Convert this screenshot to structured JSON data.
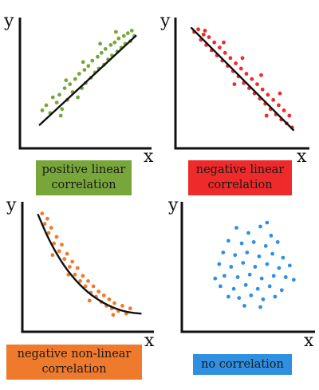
{
  "colors": {
    "positive": "#79a63b",
    "negative": "#ee2a2a",
    "nonlinear": "#f07a2c",
    "none": "#2f8fe0",
    "trend": "#111111",
    "axis": "#111111"
  },
  "chart_data": [
    {
      "type": "scatter",
      "title": "positive linear correlation",
      "xlabel": "x",
      "ylabel": "y",
      "xlim": [
        0,
        10
      ],
      "ylim": [
        0,
        10
      ],
      "trend": {
        "kind": "line",
        "points": [
          [
            1.5,
            1.8
          ],
          [
            8.8,
            8.6
          ]
        ]
      },
      "points": [
        [
          1.7,
          2.9
        ],
        [
          2.0,
          3.3
        ],
        [
          2.3,
          2.7
        ],
        [
          2.5,
          3.9
        ],
        [
          2.8,
          3.5
        ],
        [
          3.0,
          4.1
        ],
        [
          3.2,
          3.0
        ],
        [
          3.4,
          4.6
        ],
        [
          3.6,
          3.7
        ],
        [
          3.8,
          4.9
        ],
        [
          4.0,
          4.3
        ],
        [
          4.2,
          5.3
        ],
        [
          4.4,
          3.9
        ],
        [
          4.5,
          5.7
        ],
        [
          4.7,
          4.6
        ],
        [
          4.9,
          6.0
        ],
        [
          5.0,
          5.0
        ],
        [
          5.2,
          6.3
        ],
        [
          5.4,
          5.4
        ],
        [
          5.5,
          6.7
        ],
        [
          5.7,
          5.8
        ],
        [
          5.9,
          7.0
        ],
        [
          6.0,
          6.1
        ],
        [
          6.2,
          7.3
        ],
        [
          6.4,
          6.4
        ],
        [
          6.5,
          7.6
        ],
        [
          6.7,
          6.8
        ],
        [
          6.9,
          7.9
        ],
        [
          7.0,
          7.1
        ],
        [
          7.2,
          8.1
        ],
        [
          7.4,
          7.4
        ],
        [
          7.5,
          8.4
        ],
        [
          7.7,
          7.7
        ],
        [
          7.9,
          8.6
        ],
        [
          8.0,
          8.0
        ],
        [
          8.2,
          8.8
        ],
        [
          8.4,
          8.2
        ],
        [
          8.5,
          9.0
        ],
        [
          8.7,
          8.6
        ],
        [
          3.5,
          5.2
        ],
        [
          4.8,
          6.6
        ],
        [
          6.1,
          8.0
        ],
        [
          7.3,
          8.9
        ],
        [
          3.1,
          2.5
        ]
      ]
    },
    {
      "type": "scatter",
      "title": "negative linear correlation",
      "xlabel": "x",
      "ylabel": "y",
      "xlim": [
        0,
        10
      ],
      "ylim": [
        0,
        10
      ],
      "trend": {
        "kind": "line",
        "points": [
          [
            1.2,
            9.2
          ],
          [
            8.8,
            1.4
          ]
        ]
      },
      "points": [
        [
          1.4,
          8.9
        ],
        [
          1.7,
          9.1
        ],
        [
          1.9,
          8.3
        ],
        [
          2.1,
          8.7
        ],
        [
          2.3,
          7.9
        ],
        [
          2.5,
          8.5
        ],
        [
          2.7,
          7.5
        ],
        [
          2.9,
          8.1
        ],
        [
          3.1,
          7.1
        ],
        [
          3.3,
          7.7
        ],
        [
          3.5,
          6.7
        ],
        [
          3.7,
          7.3
        ],
        [
          3.9,
          6.3
        ],
        [
          4.1,
          6.9
        ],
        [
          4.3,
          5.9
        ],
        [
          4.5,
          6.5
        ],
        [
          4.7,
          5.5
        ],
        [
          4.9,
          6.1
        ],
        [
          5.1,
          5.0
        ],
        [
          5.3,
          5.7
        ],
        [
          5.5,
          4.6
        ],
        [
          5.7,
          5.3
        ],
        [
          5.9,
          4.2
        ],
        [
          6.1,
          4.9
        ],
        [
          6.3,
          3.8
        ],
        [
          6.5,
          4.5
        ],
        [
          6.7,
          3.4
        ],
        [
          6.9,
          4.1
        ],
        [
          7.1,
          3.0
        ],
        [
          7.3,
          3.7
        ],
        [
          7.5,
          2.6
        ],
        [
          7.7,
          3.3
        ],
        [
          7.9,
          2.2
        ],
        [
          8.1,
          2.9
        ],
        [
          8.3,
          1.9
        ],
        [
          8.5,
          2.5
        ],
        [
          8.7,
          1.6
        ],
        [
          2.2,
          9.0
        ],
        [
          3.6,
          8.1
        ],
        [
          5.0,
          6.9
        ],
        [
          6.4,
          5.6
        ],
        [
          7.8,
          4.2
        ],
        [
          4.4,
          4.9
        ],
        [
          6.8,
          2.5
        ]
      ]
    },
    {
      "type": "scatter",
      "title": "negative non-linear correlation",
      "xlabel": "x",
      "ylabel": "y",
      "xlim": [
        0,
        10
      ],
      "ylim": [
        0,
        10
      ],
      "trend": {
        "kind": "curve",
        "points": [
          [
            1.2,
            9.0
          ],
          [
            2.0,
            7.1
          ],
          [
            3.0,
            5.3
          ],
          [
            4.0,
            4.0
          ],
          [
            5.0,
            3.0
          ],
          [
            6.0,
            2.3
          ],
          [
            7.0,
            1.8
          ],
          [
            8.0,
            1.5
          ],
          [
            9.0,
            1.4
          ]
        ]
      },
      "points": [
        [
          1.5,
          9.1
        ],
        [
          1.7,
          8.3
        ],
        [
          1.9,
          8.7
        ],
        [
          2.0,
          7.6
        ],
        [
          2.2,
          8.0
        ],
        [
          2.4,
          6.8
        ],
        [
          2.6,
          7.3
        ],
        [
          2.8,
          6.2
        ],
        [
          3.0,
          6.7
        ],
        [
          3.2,
          5.6
        ],
        [
          3.4,
          6.0
        ],
        [
          3.6,
          5.0
        ],
        [
          3.8,
          5.4
        ],
        [
          4.0,
          4.4
        ],
        [
          4.2,
          4.9
        ],
        [
          4.4,
          3.9
        ],
        [
          4.6,
          4.3
        ],
        [
          4.8,
          3.5
        ],
        [
          5.0,
          3.9
        ],
        [
          5.2,
          3.0
        ],
        [
          5.4,
          3.5
        ],
        [
          5.6,
          2.7
        ],
        [
          5.8,
          3.1
        ],
        [
          6.0,
          2.3
        ],
        [
          6.2,
          2.8
        ],
        [
          6.4,
          2.0
        ],
        [
          6.6,
          2.5
        ],
        [
          6.8,
          1.8
        ],
        [
          7.0,
          2.2
        ],
        [
          7.3,
          1.6
        ],
        [
          7.6,
          2.0
        ],
        [
          7.9,
          1.4
        ],
        [
          8.2,
          1.8
        ],
        [
          2.3,
          5.9
        ],
        [
          3.5,
          4.4
        ],
        [
          5.1,
          2.4
        ],
        [
          6.9,
          1.3
        ]
      ]
    },
    {
      "type": "scatter",
      "title": "no correlation",
      "xlabel": "x",
      "ylabel": "y",
      "xlim": [
        0,
        10
      ],
      "ylim": [
        0,
        10
      ],
      "trend": null,
      "points": [
        [
          4.1,
          8.0
        ],
        [
          5.0,
          7.6
        ],
        [
          5.9,
          8.1
        ],
        [
          6.7,
          7.4
        ],
        [
          3.5,
          7.0
        ],
        [
          4.5,
          6.8
        ],
        [
          5.4,
          6.9
        ],
        [
          6.3,
          6.6
        ],
        [
          7.2,
          6.9
        ],
        [
          3.1,
          6.1
        ],
        [
          4.0,
          5.9
        ],
        [
          4.9,
          6.1
        ],
        [
          5.8,
          5.8
        ],
        [
          6.8,
          6.0
        ],
        [
          7.6,
          5.7
        ],
        [
          2.8,
          5.2
        ],
        [
          3.7,
          5.0
        ],
        [
          4.6,
          5.3
        ],
        [
          5.5,
          5.0
        ],
        [
          6.4,
          5.2
        ],
        [
          7.3,
          4.9
        ],
        [
          8.1,
          5.1
        ],
        [
          3.2,
          4.3
        ],
        [
          4.2,
          4.2
        ],
        [
          5.1,
          4.4
        ],
        [
          6.0,
          4.1
        ],
        [
          6.9,
          4.3
        ],
        [
          7.8,
          4.2
        ],
        [
          2.9,
          3.5
        ],
        [
          3.9,
          3.3
        ],
        [
          4.8,
          3.6
        ],
        [
          5.7,
          3.3
        ],
        [
          6.6,
          3.5
        ],
        [
          7.5,
          3.2
        ],
        [
          4.3,
          2.6
        ],
        [
          5.2,
          2.8
        ],
        [
          6.1,
          2.5
        ],
        [
          7.0,
          2.7
        ],
        [
          4.7,
          2.0
        ],
        [
          5.9,
          1.9
        ],
        [
          8.4,
          4.0
        ],
        [
          3.5,
          2.7
        ],
        [
          6.4,
          8.4
        ],
        [
          2.5,
          4.1
        ]
      ]
    }
  ]
}
